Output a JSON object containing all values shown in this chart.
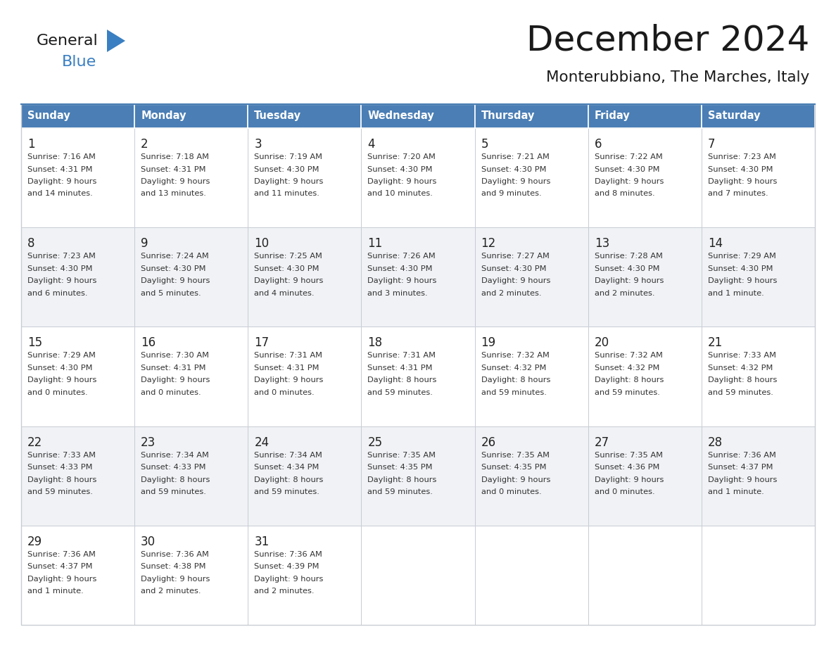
{
  "title": "December 2024",
  "subtitle": "Monterubbiano, The Marches, Italy",
  "header_color": "#4a7eb5",
  "header_text_color": "#ffffff",
  "row_bg_white": "#ffffff",
  "row_bg_gray": "#f0f2f5",
  "cell_border_color": "#c8cdd4",
  "day_headers": [
    "Sunday",
    "Monday",
    "Tuesday",
    "Wednesday",
    "Thursday",
    "Friday",
    "Saturday"
  ],
  "weeks": [
    [
      {
        "day": "1",
        "sunrise": "7:16 AM",
        "sunset": "4:31 PM",
        "daylight_h": "9 hours",
        "daylight_m": "and 14 minutes."
      },
      {
        "day": "2",
        "sunrise": "7:18 AM",
        "sunset": "4:31 PM",
        "daylight_h": "9 hours",
        "daylight_m": "and 13 minutes."
      },
      {
        "day": "3",
        "sunrise": "7:19 AM",
        "sunset": "4:30 PM",
        "daylight_h": "9 hours",
        "daylight_m": "and 11 minutes."
      },
      {
        "day": "4",
        "sunrise": "7:20 AM",
        "sunset": "4:30 PM",
        "daylight_h": "9 hours",
        "daylight_m": "and 10 minutes."
      },
      {
        "day": "5",
        "sunrise": "7:21 AM",
        "sunset": "4:30 PM",
        "daylight_h": "9 hours",
        "daylight_m": "and 9 minutes."
      },
      {
        "day": "6",
        "sunrise": "7:22 AM",
        "sunset": "4:30 PM",
        "daylight_h": "9 hours",
        "daylight_m": "and 8 minutes."
      },
      {
        "day": "7",
        "sunrise": "7:23 AM",
        "sunset": "4:30 PM",
        "daylight_h": "9 hours",
        "daylight_m": "and 7 minutes."
      }
    ],
    [
      {
        "day": "8",
        "sunrise": "7:23 AM",
        "sunset": "4:30 PM",
        "daylight_h": "9 hours",
        "daylight_m": "and 6 minutes."
      },
      {
        "day": "9",
        "sunrise": "7:24 AM",
        "sunset": "4:30 PM",
        "daylight_h": "9 hours",
        "daylight_m": "and 5 minutes."
      },
      {
        "day": "10",
        "sunrise": "7:25 AM",
        "sunset": "4:30 PM",
        "daylight_h": "9 hours",
        "daylight_m": "and 4 minutes."
      },
      {
        "day": "11",
        "sunrise": "7:26 AM",
        "sunset": "4:30 PM",
        "daylight_h": "9 hours",
        "daylight_m": "and 3 minutes."
      },
      {
        "day": "12",
        "sunrise": "7:27 AM",
        "sunset": "4:30 PM",
        "daylight_h": "9 hours",
        "daylight_m": "and 2 minutes."
      },
      {
        "day": "13",
        "sunrise": "7:28 AM",
        "sunset": "4:30 PM",
        "daylight_h": "9 hours",
        "daylight_m": "and 2 minutes."
      },
      {
        "day": "14",
        "sunrise": "7:29 AM",
        "sunset": "4:30 PM",
        "daylight_h": "9 hours",
        "daylight_m": "and 1 minute."
      }
    ],
    [
      {
        "day": "15",
        "sunrise": "7:29 AM",
        "sunset": "4:30 PM",
        "daylight_h": "9 hours",
        "daylight_m": "and 0 minutes."
      },
      {
        "day": "16",
        "sunrise": "7:30 AM",
        "sunset": "4:31 PM",
        "daylight_h": "9 hours",
        "daylight_m": "and 0 minutes."
      },
      {
        "day": "17",
        "sunrise": "7:31 AM",
        "sunset": "4:31 PM",
        "daylight_h": "9 hours",
        "daylight_m": "and 0 minutes."
      },
      {
        "day": "18",
        "sunrise": "7:31 AM",
        "sunset": "4:31 PM",
        "daylight_h": "8 hours",
        "daylight_m": "and 59 minutes."
      },
      {
        "day": "19",
        "sunrise": "7:32 AM",
        "sunset": "4:32 PM",
        "daylight_h": "8 hours",
        "daylight_m": "and 59 minutes."
      },
      {
        "day": "20",
        "sunrise": "7:32 AM",
        "sunset": "4:32 PM",
        "daylight_h": "8 hours",
        "daylight_m": "and 59 minutes."
      },
      {
        "day": "21",
        "sunrise": "7:33 AM",
        "sunset": "4:32 PM",
        "daylight_h": "8 hours",
        "daylight_m": "and 59 minutes."
      }
    ],
    [
      {
        "day": "22",
        "sunrise": "7:33 AM",
        "sunset": "4:33 PM",
        "daylight_h": "8 hours",
        "daylight_m": "and 59 minutes."
      },
      {
        "day": "23",
        "sunrise": "7:34 AM",
        "sunset": "4:33 PM",
        "daylight_h": "8 hours",
        "daylight_m": "and 59 minutes."
      },
      {
        "day": "24",
        "sunrise": "7:34 AM",
        "sunset": "4:34 PM",
        "daylight_h": "8 hours",
        "daylight_m": "and 59 minutes."
      },
      {
        "day": "25",
        "sunrise": "7:35 AM",
        "sunset": "4:35 PM",
        "daylight_h": "8 hours",
        "daylight_m": "and 59 minutes."
      },
      {
        "day": "26",
        "sunrise": "7:35 AM",
        "sunset": "4:35 PM",
        "daylight_h": "9 hours",
        "daylight_m": "and 0 minutes."
      },
      {
        "day": "27",
        "sunrise": "7:35 AM",
        "sunset": "4:36 PM",
        "daylight_h": "9 hours",
        "daylight_m": "and 0 minutes."
      },
      {
        "day": "28",
        "sunrise": "7:36 AM",
        "sunset": "4:37 PM",
        "daylight_h": "9 hours",
        "daylight_m": "and 1 minute."
      }
    ],
    [
      {
        "day": "29",
        "sunrise": "7:36 AM",
        "sunset": "4:37 PM",
        "daylight_h": "9 hours",
        "daylight_m": "and 1 minute."
      },
      {
        "day": "30",
        "sunrise": "7:36 AM",
        "sunset": "4:38 PM",
        "daylight_h": "9 hours",
        "daylight_m": "and 2 minutes."
      },
      {
        "day": "31",
        "sunrise": "7:36 AM",
        "sunset": "4:39 PM",
        "daylight_h": "9 hours",
        "daylight_m": "and 2 minutes."
      },
      null,
      null,
      null,
      null
    ]
  ]
}
